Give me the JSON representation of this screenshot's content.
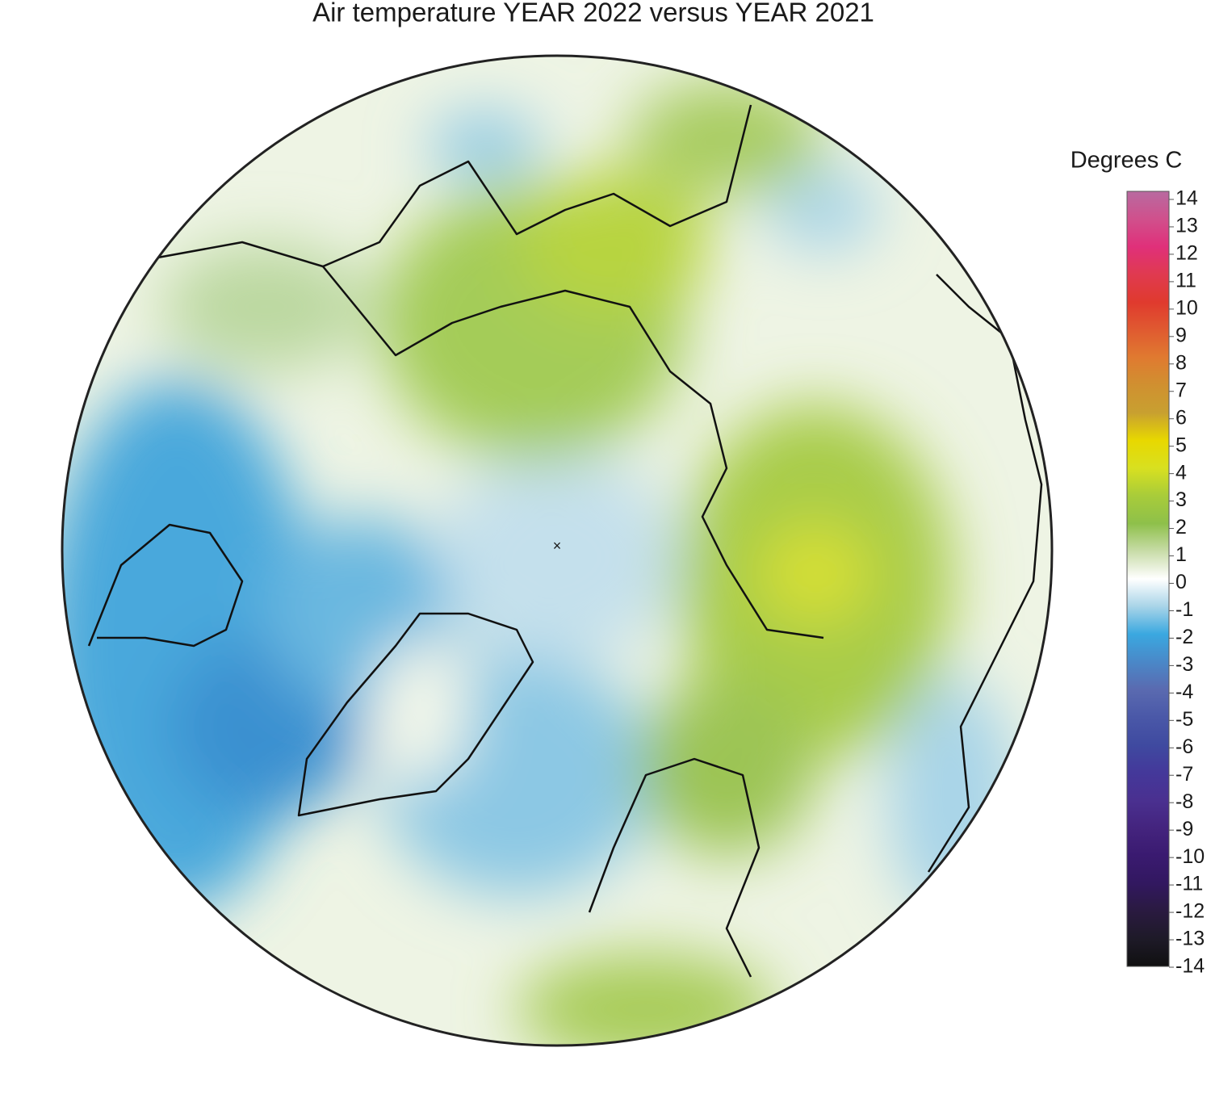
{
  "chart_data": {
    "type": "polar-map",
    "title": "Air temperature YEAR 2022 versus YEAR 2021",
    "colorbar": {
      "label": "Degrees C",
      "lim": [
        -14,
        14
      ],
      "ticks": [
        14,
        13,
        12,
        11,
        10,
        9,
        8,
        7,
        6,
        5,
        4,
        3,
        2,
        1,
        0,
        -1,
        -2,
        -3,
        -4,
        -5,
        -6,
        -7,
        -8,
        -9,
        -10,
        -11,
        -12,
        -13,
        -14
      ],
      "colors": [
        "#b86aa0",
        "#d0508c",
        "#e0307a",
        "#e03a50",
        "#e03a2e",
        "#e05a30",
        "#e07a30",
        "#d09030",
        "#c8a030",
        "#e8d800",
        "#d8e020",
        "#a8cc3a",
        "#8ec04a",
        "#c8dca8",
        "#ffffff",
        "#a8d4e8",
        "#3aa8e0",
        "#4a88c8",
        "#5a6ab0",
        "#4a58a8",
        "#3f4aa0",
        "#44389a",
        "#4a3090",
        "#44247e",
        "#3a1a70",
        "#321860",
        "#2a1a40",
        "#1e1a28",
        "#101010"
      ]
    }
  }
}
